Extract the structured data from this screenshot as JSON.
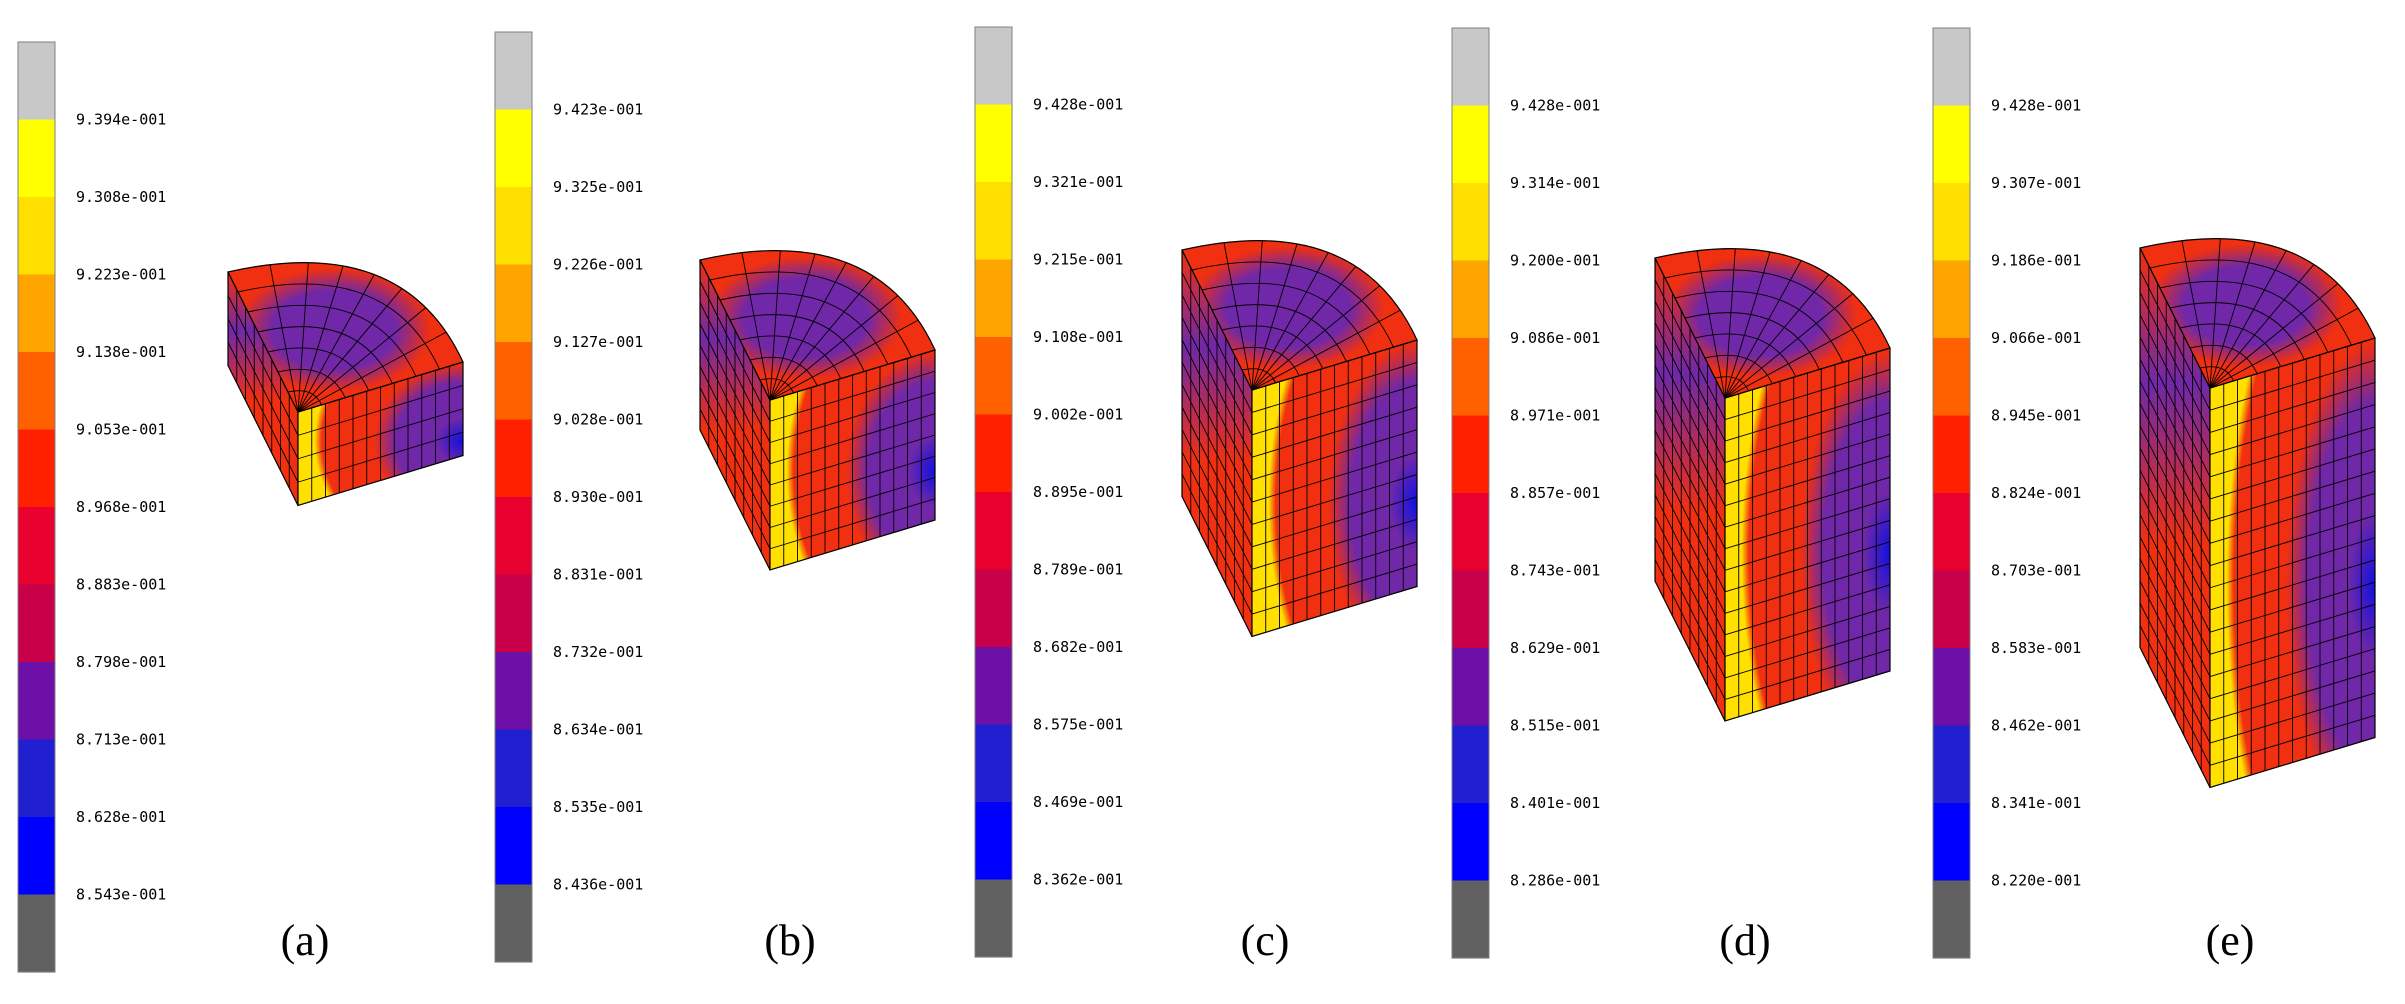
{
  "colorbar_colors": [
    "#c8c8c8",
    "#ffff00",
    "#ffdf00",
    "#ffa500",
    "#ff6000",
    "#ff2000",
    "#e8002e",
    "#c8004a",
    "#6c10a8",
    "#2020d0",
    "#0000ff",
    "#606060"
  ],
  "mesh_colors": {
    "high": "#ffe000",
    "mid": "#f03010",
    "low": "#7028a8",
    "lowest": "#1010e0",
    "grid": "#000000"
  },
  "panels": [
    {
      "label": "(a)",
      "ticks": [
        "9.394e-001",
        "9.308e-001",
        "9.223e-001",
        "9.138e-001",
        "9.053e-001",
        "8.968e-001",
        "8.883e-001",
        "8.798e-001",
        "8.713e-001",
        "8.628e-001",
        "8.543e-001"
      ],
      "cylinder_h": 0.55
    },
    {
      "label": "(b)",
      "ticks": [
        "9.423e-001",
        "9.325e-001",
        "9.226e-001",
        "9.127e-001",
        "9.028e-001",
        "8.930e-001",
        "8.831e-001",
        "8.732e-001",
        "8.634e-001",
        "8.535e-001",
        "8.436e-001"
      ],
      "cylinder_h": 1.0
    },
    {
      "label": "(c)",
      "ticks": [
        "9.428e-001",
        "9.321e-001",
        "9.215e-001",
        "9.108e-001",
        "9.002e-001",
        "8.895e-001",
        "8.789e-001",
        "8.682e-001",
        "8.575e-001",
        "8.469e-001",
        "8.362e-001"
      ],
      "cylinder_h": 1.45
    },
    {
      "label": "(d)",
      "ticks": [
        "9.428e-001",
        "9.314e-001",
        "9.200e-001",
        "9.086e-001",
        "8.971e-001",
        "8.857e-001",
        "8.743e-001",
        "8.629e-001",
        "8.515e-001",
        "8.401e-001",
        "8.286e-001"
      ],
      "cylinder_h": 1.9
    },
    {
      "label": "(e)",
      "ticks": [
        "9.428e-001",
        "9.307e-001",
        "9.186e-001",
        "9.066e-001",
        "8.945e-001",
        "8.824e-001",
        "8.703e-001",
        "8.583e-001",
        "8.462e-001",
        "8.341e-001",
        "8.220e-001"
      ],
      "cylinder_h": 2.35
    }
  ]
}
